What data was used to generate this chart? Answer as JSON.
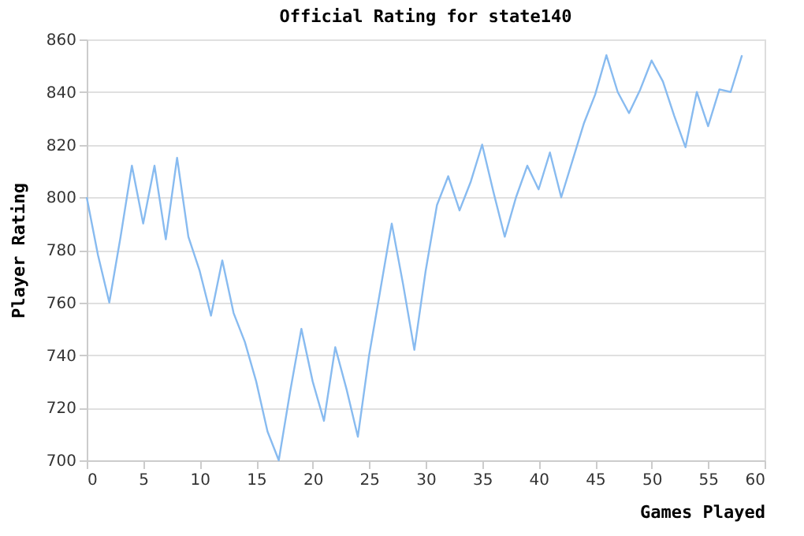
{
  "chart_data": {
    "type": "line",
    "title": "Official Rating for state140",
    "xlabel": "Games Played",
    "ylabel": "Player Rating",
    "x": [
      0,
      1,
      2,
      3,
      4,
      5,
      6,
      7,
      8,
      9,
      10,
      11,
      12,
      13,
      14,
      15,
      16,
      17,
      18,
      19,
      20,
      21,
      22,
      23,
      24,
      25,
      26,
      27,
      28,
      29,
      30,
      31,
      32,
      33,
      34,
      35,
      36,
      37,
      38,
      39,
      40,
      41,
      42,
      43,
      44,
      45,
      46,
      47,
      48,
      49,
      50,
      51,
      52,
      53,
      54,
      55,
      56,
      57,
      58
    ],
    "series": [
      {
        "color": "#88bbf0",
        "values": [
          800,
          778,
          760,
          785,
          812,
          790,
          812,
          784,
          815,
          785,
          772,
          755,
          776,
          756,
          745,
          730,
          711,
          700,
          726,
          750,
          730,
          715,
          743,
          727,
          709,
          740,
          765,
          790,
          767,
          742,
          772,
          797,
          808,
          795,
          806,
          820,
          802,
          785,
          800,
          812,
          803,
          817,
          800,
          814,
          828,
          839,
          854,
          840,
          832,
          841,
          852,
          844,
          831,
          819,
          840,
          827,
          841,
          840,
          854
        ]
      }
    ],
    "xlim": [
      0,
      60
    ],
    "xticks": [
      0,
      5,
      10,
      15,
      20,
      25,
      30,
      35,
      40,
      45,
      50,
      55,
      60
    ],
    "ylim": [
      700,
      860
    ],
    "yticks": [
      700,
      720,
      740,
      760,
      780,
      800,
      820,
      840,
      860
    ],
    "grid": "y",
    "marker": "none",
    "line_style": "solid"
  }
}
